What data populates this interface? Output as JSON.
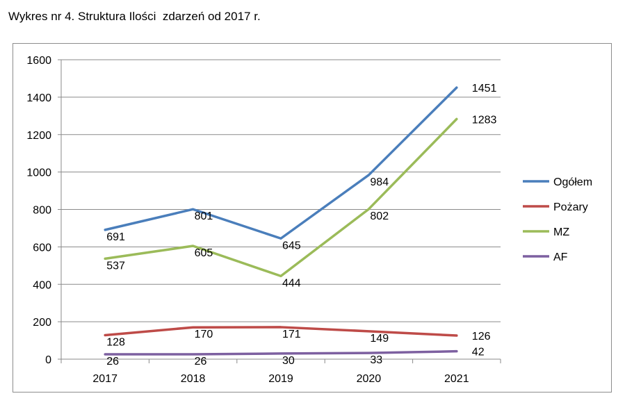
{
  "caption": "Wykres nr 4. Struktura Ilości  zdarzeń od 2017 r.",
  "chart_data": {
    "type": "line",
    "title": "",
    "xlabel": "",
    "ylabel": "",
    "categories": [
      "2017",
      "2018",
      "2019",
      "2020",
      "2021"
    ],
    "ylim": [
      0,
      1600
    ],
    "yticks": [
      0,
      200,
      400,
      600,
      800,
      1000,
      1200,
      1400,
      1600
    ],
    "grid": true,
    "legend": "right",
    "series": [
      {
        "name": "Ogółem",
        "color": "#4a7ebb",
        "values": [
          691,
          801,
          645,
          984,
          1451
        ]
      },
      {
        "name": "Pożary",
        "color": "#be4b48",
        "values": [
          128,
          170,
          171,
          149,
          126
        ]
      },
      {
        "name": "MZ",
        "color": "#9bbb59",
        "values": [
          537,
          605,
          444,
          802,
          1283
        ]
      },
      {
        "name": "AF",
        "color": "#7d60a0",
        "values": [
          26,
          26,
          30,
          33,
          42
        ]
      }
    ]
  }
}
